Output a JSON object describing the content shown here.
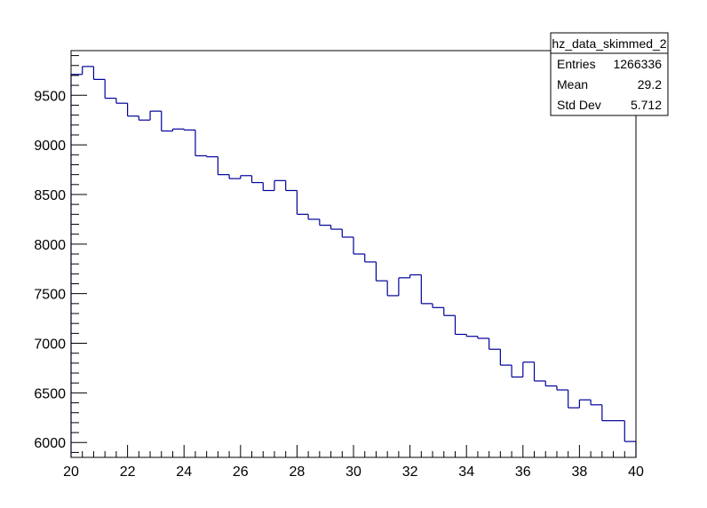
{
  "stats": {
    "title": "hz_data_skimmed_2",
    "rows": [
      {
        "label": "Entries",
        "value": "1266336"
      },
      {
        "label": "Mean",
        "value": "29.2"
      },
      {
        "label": "Std Dev",
        "value": "5.712"
      }
    ]
  },
  "chart_data": {
    "type": "histogram",
    "title": "",
    "xlabel": "",
    "ylabel": "",
    "xlim": [
      20,
      40
    ],
    "ylim": [
      5850,
      9950
    ],
    "x_ticks": [
      20,
      22,
      24,
      26,
      28,
      30,
      32,
      34,
      36,
      38,
      40
    ],
    "y_ticks": [
      6000,
      6500,
      7000,
      7500,
      8000,
      8500,
      9000,
      9500
    ],
    "bin_width": 0.4,
    "bin_edges_start": 20,
    "line_color": "#000099",
    "values": [
      9710,
      9790,
      9660,
      9470,
      9420,
      9290,
      9250,
      9340,
      9140,
      9160,
      9150,
      8890,
      8880,
      8700,
      8660,
      8690,
      8620,
      8540,
      8640,
      8540,
      8300,
      8250,
      8190,
      8150,
      8070,
      7900,
      7820,
      7630,
      7480,
      7660,
      7690,
      7400,
      7360,
      7280,
      7090,
      7070,
      7050,
      6940,
      6780,
      6660,
      6810,
      6620,
      6570,
      6530,
      6350,
      6430,
      6380,
      6220,
      6220,
      6010
    ]
  }
}
